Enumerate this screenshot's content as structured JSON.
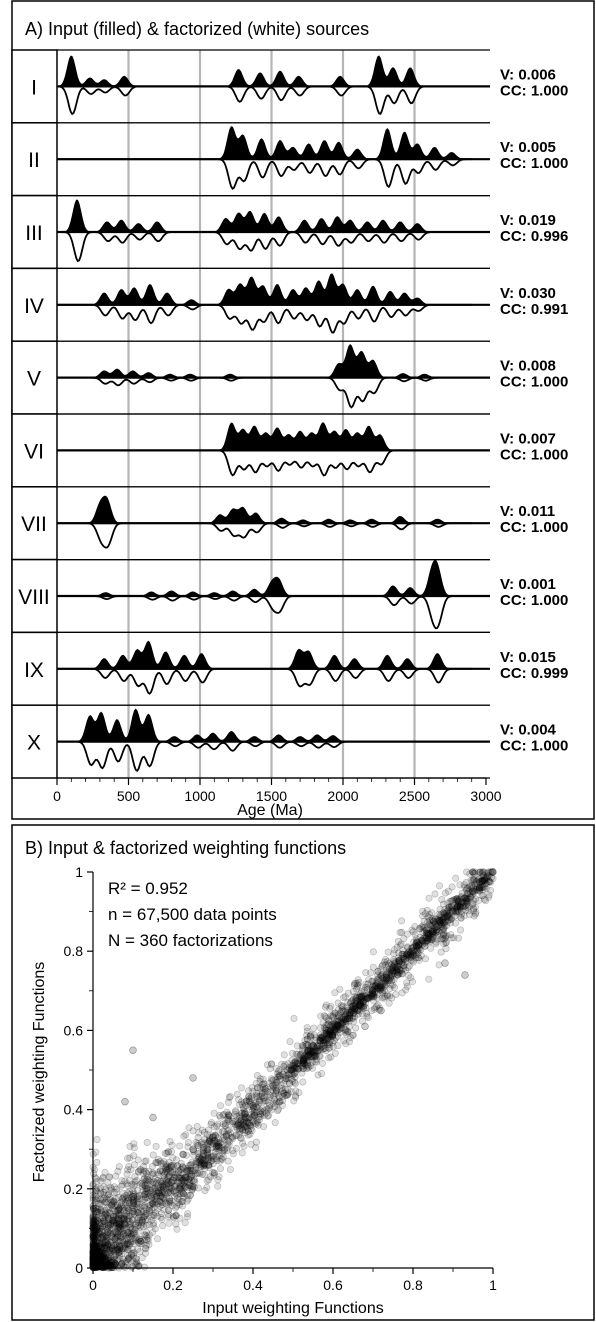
{
  "panel_a": {
    "title": "A)  Input (filled) & factorized (white) sources",
    "xlabel": "Age (Ma)",
    "xticks": [
      "0",
      "500",
      "1000",
      "1500",
      "2000",
      "2500",
      "3000"
    ],
    "rows": [
      {
        "label": "I",
        "v": "V: 0.006",
        "cc": "CC: 1.000"
      },
      {
        "label": "II",
        "v": "V: 0.005",
        "cc": "CC: 1.000"
      },
      {
        "label": "III",
        "v": "V: 0.019",
        "cc": "CC: 0.996"
      },
      {
        "label": "IV",
        "v": "V: 0.030",
        "cc": "CC: 0.991"
      },
      {
        "label": "V",
        "v": "V: 0.008",
        "cc": "CC: 1.000"
      },
      {
        "label": "VI",
        "v": "V: 0.007",
        "cc": "CC: 1.000"
      },
      {
        "label": "VII",
        "v": "V: 0.011",
        "cc": "CC: 1.000"
      },
      {
        "label": "VIII",
        "v": "V: 0.001",
        "cc": "CC: 1.000"
      },
      {
        "label": "IX",
        "v": "V: 0.015",
        "cc": "CC: 0.999"
      },
      {
        "label": "X",
        "v": "V: 0.004",
        "cc": "CC: 1.000"
      }
    ]
  },
  "panel_b": {
    "title": "B)  Input  & factorized weighting functions",
    "stats": [
      "R² = 0.952",
      "n = 67,500 data points",
      "N = 360 factorizations"
    ],
    "xlabel": "Input weighting Functions",
    "ylabel": "Factorized weighting Functions",
    "ticks": [
      "0",
      "0.2",
      "0.4",
      "0.6",
      "0.8",
      "1"
    ]
  },
  "chart_data": [
    {
      "type": "area",
      "title": "A)  Input (filled) & factorized (white) sources",
      "xlabel": "Age (Ma)",
      "xlim": [
        0,
        3000
      ],
      "grid": true,
      "series": [
        {
          "name": "I",
          "V": 0.006,
          "CC": 1.0,
          "peaks": [
            [
              100,
              0.9
            ],
            [
              230,
              0.25
            ],
            [
              330,
              0.2
            ],
            [
              470,
              0.3
            ],
            [
              1270,
              0.5
            ],
            [
              1420,
              0.4
            ],
            [
              1560,
              0.45
            ],
            [
              1690,
              0.3
            ],
            [
              1980,
              0.3
            ],
            [
              2250,
              0.9
            ],
            [
              2350,
              0.55
            ],
            [
              2470,
              0.55
            ]
          ]
        },
        {
          "name": "II",
          "V": 0.005,
          "CC": 1.0,
          "peaks": [
            [
              1220,
              0.95
            ],
            [
              1300,
              0.7
            ],
            [
              1430,
              0.6
            ],
            [
              1560,
              0.55
            ],
            [
              1650,
              0.35
            ],
            [
              1760,
              0.45
            ],
            [
              1870,
              0.55
            ],
            [
              1970,
              0.5
            ],
            [
              2100,
              0.3
            ],
            [
              2310,
              0.9
            ],
            [
              2430,
              0.8
            ],
            [
              2520,
              0.45
            ],
            [
              2640,
              0.35
            ],
            [
              2760,
              0.2
            ]
          ]
        },
        {
          "name": "III",
          "V": 0.019,
          "CC": 0.996,
          "peaks": [
            [
              140,
              0.95
            ],
            [
              350,
              0.3
            ],
            [
              450,
              0.35
            ],
            [
              570,
              0.25
            ],
            [
              700,
              0.3
            ],
            [
              1180,
              0.4
            ],
            [
              1270,
              0.55
            ],
            [
              1350,
              0.6
            ],
            [
              1450,
              0.55
            ],
            [
              1550,
              0.45
            ],
            [
              1730,
              0.35
            ],
            [
              1850,
              0.4
            ],
            [
              1960,
              0.45
            ],
            [
              2050,
              0.35
            ],
            [
              2170,
              0.3
            ],
            [
              2280,
              0.35
            ],
            [
              2400,
              0.3
            ],
            [
              2520,
              0.25
            ]
          ]
        },
        {
          "name": "IV",
          "V": 0.03,
          "CC": 0.991,
          "peaks": [
            [
              330,
              0.35
            ],
            [
              450,
              0.45
            ],
            [
              540,
              0.5
            ],
            [
              650,
              0.6
            ],
            [
              770,
              0.35
            ],
            [
              940,
              0.15
            ],
            [
              1200,
              0.45
            ],
            [
              1280,
              0.6
            ],
            [
              1360,
              0.8
            ],
            [
              1440,
              0.55
            ],
            [
              1540,
              0.6
            ],
            [
              1650,
              0.45
            ],
            [
              1740,
              0.5
            ],
            [
              1830,
              0.7
            ],
            [
              1920,
              0.9
            ],
            [
              2000,
              0.6
            ],
            [
              2100,
              0.45
            ],
            [
              2210,
              0.55
            ],
            [
              2330,
              0.4
            ],
            [
              2430,
              0.35
            ],
            [
              2520,
              0.2
            ]
          ]
        },
        {
          "name": "V",
          "V": 0.008,
          "CC": 1.0,
          "peaks": [
            [
              330,
              0.2
            ],
            [
              420,
              0.25
            ],
            [
              530,
              0.2
            ],
            [
              640,
              0.15
            ],
            [
              790,
              0.1
            ],
            [
              930,
              0.1
            ],
            [
              1210,
              0.1
            ],
            [
              1970,
              0.4
            ],
            [
              2050,
              0.95
            ],
            [
              2130,
              0.75
            ],
            [
              2210,
              0.5
            ],
            [
              2420,
              0.12
            ],
            [
              2570,
              0.1
            ]
          ]
        },
        {
          "name": "VI",
          "V": 0.007,
          "CC": 1.0,
          "peaks": [
            [
              1220,
              0.8
            ],
            [
              1300,
              0.6
            ],
            [
              1380,
              0.7
            ],
            [
              1460,
              0.5
            ],
            [
              1540,
              0.65
            ],
            [
              1620,
              0.45
            ],
            [
              1700,
              0.55
            ],
            [
              1780,
              0.5
            ],
            [
              1860,
              0.8
            ],
            [
              1940,
              0.55
            ],
            [
              2020,
              0.6
            ],
            [
              2100,
              0.5
            ],
            [
              2180,
              0.7
            ],
            [
              2260,
              0.45
            ]
          ]
        },
        {
          "name": "VII",
          "V": 0.011,
          "CC": 1.0,
          "peaks": [
            [
              300,
              0.5
            ],
            [
              350,
              0.65
            ],
            [
              1140,
              0.25
            ],
            [
              1230,
              0.4
            ],
            [
              1300,
              0.45
            ],
            [
              1390,
              0.3
            ],
            [
              1570,
              0.15
            ],
            [
              1720,
              0.1
            ],
            [
              1900,
              0.12
            ],
            [
              2050,
              0.1
            ],
            [
              2200,
              0.12
            ],
            [
              2400,
              0.2
            ],
            [
              2660,
              0.12
            ]
          ]
        },
        {
          "name": "VIII",
          "V": 0.001,
          "CC": 1.0,
          "peaks": [
            [
              340,
              0.1
            ],
            [
              660,
              0.12
            ],
            [
              800,
              0.15
            ],
            [
              950,
              0.12
            ],
            [
              1100,
              0.1
            ],
            [
              1230,
              0.15
            ],
            [
              1380,
              0.2
            ],
            [
              1500,
              0.35
            ],
            [
              1550,
              0.45
            ],
            [
              2350,
              0.3
            ],
            [
              2470,
              0.25
            ],
            [
              2620,
              0.6
            ],
            [
              2660,
              0.75
            ]
          ]
        },
        {
          "name": "IX",
          "V": 0.015,
          "CC": 0.999,
          "peaks": [
            [
              330,
              0.3
            ],
            [
              460,
              0.4
            ],
            [
              560,
              0.55
            ],
            [
              640,
              0.8
            ],
            [
              760,
              0.5
            ],
            [
              890,
              0.4
            ],
            [
              1010,
              0.45
            ],
            [
              1690,
              0.55
            ],
            [
              1760,
              0.5
            ],
            [
              1940,
              0.4
            ],
            [
              2080,
              0.3
            ],
            [
              2310,
              0.4
            ],
            [
              2450,
              0.3
            ],
            [
              2660,
              0.45
            ]
          ]
        },
        {
          "name": "X",
          "V": 0.004,
          "CC": 1.0,
          "peaks": [
            [
              230,
              0.75
            ],
            [
              310,
              0.85
            ],
            [
              420,
              0.65
            ],
            [
              550,
              0.95
            ],
            [
              640,
              0.8
            ],
            [
              820,
              0.15
            ],
            [
              980,
              0.2
            ],
            [
              1090,
              0.25
            ],
            [
              1220,
              0.3
            ],
            [
              1380,
              0.15
            ],
            [
              1550,
              0.2
            ],
            [
              1700,
              0.15
            ],
            [
              1820,
              0.2
            ],
            [
              1930,
              0.18
            ]
          ]
        }
      ]
    },
    {
      "type": "scatter",
      "title": "B)  Input  & factorized weighting functions",
      "xlabel": "Input weighting Functions",
      "ylabel": "Factorized weighting Functions",
      "xlim": [
        0,
        1
      ],
      "ylim": [
        0,
        1
      ],
      "annotations": [
        "R² = 0.952",
        "n = 67,500 data points",
        "N = 360 factorizations"
      ],
      "relationship": {
        "slope": 1.0,
        "intercept": 0.0,
        "r2": 0.952
      },
      "sample_points": [
        [
          0.02,
          0.05
        ],
        [
          0.05,
          0.12
        ],
        [
          0.1,
          0.18
        ],
        [
          0.15,
          0.2
        ],
        [
          0.2,
          0.22
        ],
        [
          0.25,
          0.3
        ],
        [
          0.3,
          0.33
        ],
        [
          0.35,
          0.37
        ],
        [
          0.4,
          0.41
        ],
        [
          0.45,
          0.46
        ],
        [
          0.5,
          0.51
        ],
        [
          0.55,
          0.56
        ],
        [
          0.6,
          0.61
        ],
        [
          0.65,
          0.66
        ],
        [
          0.7,
          0.71
        ],
        [
          0.75,
          0.76
        ],
        [
          0.8,
          0.8
        ],
        [
          0.85,
          0.85
        ],
        [
          0.9,
          0.9
        ],
        [
          0.95,
          0.96
        ],
        [
          1.0,
          1.0
        ],
        [
          0.1,
          0.55
        ],
        [
          0.88,
          0.77
        ],
        [
          0.93,
          0.74
        ],
        [
          0.72,
          0.65
        ],
        [
          0.68,
          0.61
        ],
        [
          0.08,
          0.42
        ],
        [
          0.15,
          0.38
        ],
        [
          0.25,
          0.48
        ]
      ]
    }
  ]
}
